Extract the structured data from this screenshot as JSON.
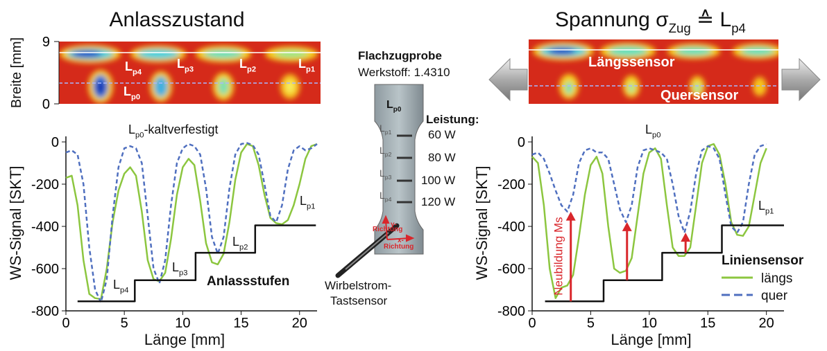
{
  "chart_data": [
    {
      "type": "line",
      "xlim": [
        0,
        21.5
      ],
      "ylim": [
        -800,
        0
      ],
      "xticks": [
        0,
        5,
        10,
        15,
        20
      ],
      "yticks": [
        -800,
        -600,
        -400,
        -200,
        0
      ],
      "xlabel": "Länge [mm]",
      "ylabel": "WS-Signal [SKT]",
      "series": [
        {
          "color": "#8cc63f",
          "dash": false,
          "x": [
            0,
            0.5,
            1,
            1.5,
            2,
            2.5,
            3,
            3.5,
            4,
            4.5,
            5,
            5.5,
            6,
            6.5,
            7,
            7.5,
            8,
            8.5,
            9,
            9.5,
            10,
            10.5,
            11,
            11.5,
            12,
            12.5,
            13,
            13.5,
            14,
            14.5,
            15,
            15.5,
            16,
            16.5,
            17,
            17.5,
            18,
            18.5,
            19,
            19.5,
            20,
            20.5,
            21,
            21.5
          ],
          "values": [
            -170,
            -160,
            -300,
            -560,
            -720,
            -740,
            -745,
            -600,
            -380,
            -230,
            -150,
            -120,
            -160,
            -330,
            -560,
            -650,
            -660,
            -620,
            -460,
            -250,
            -120,
            -80,
            -110,
            -280,
            -480,
            -570,
            -580,
            -530,
            -380,
            -180,
            -50,
            -10,
            -20,
            -110,
            -250,
            -360,
            -385,
            -390,
            -370,
            -300,
            -200,
            -80,
            -20,
            -10
          ]
        },
        {
          "color": "#4f6fbf",
          "dash": true,
          "x": [
            0,
            0.5,
            1,
            1.5,
            2,
            2.5,
            3,
            3.5,
            4,
            4.5,
            5,
            5.5,
            6,
            6.5,
            7,
            7.5,
            8,
            8.5,
            9,
            9.5,
            10,
            10.5,
            11,
            11.5,
            12,
            12.5,
            13,
            13.5,
            14,
            14.5,
            15,
            15.5,
            16,
            16.5,
            17,
            17.5,
            18,
            18.5,
            19,
            19.5,
            20,
            20.5,
            21,
            21.5
          ],
          "values": [
            -50,
            -40,
            -60,
            -200,
            -500,
            -700,
            -760,
            -650,
            -350,
            -120,
            -30,
            -20,
            -30,
            -100,
            -350,
            -600,
            -670,
            -560,
            -300,
            -100,
            -30,
            -10,
            -20,
            -60,
            -220,
            -450,
            -530,
            -450,
            -220,
            -60,
            -10,
            -5,
            -15,
            -60,
            -200,
            -350,
            -380,
            -300,
            -130,
            -40,
            -20,
            -40,
            -30,
            -10
          ]
        },
        {
          "color": "#111111",
          "dash": false,
          "x": [
            1,
            5.9,
            5.9,
            11.1,
            11.1,
            16.2,
            16.2,
            21.4
          ],
          "values": [
            -755,
            -755,
            -655,
            -655,
            -525,
            -525,
            -395,
            -395
          ]
        }
      ],
      "annotations": [
        {
          "text": "L",
          "sub": "p0",
          "tail": "-kaltverfestigt"
        },
        {
          "text": "L",
          "sub": "p1"
        },
        {
          "text": "L",
          "sub": "p2"
        },
        {
          "text": "L",
          "sub": "p3"
        },
        {
          "text": "L",
          "sub": "p4"
        },
        "Anlassstufen"
      ]
    },
    {
      "type": "line",
      "xlim": [
        0,
        21.5
      ],
      "ylim": [
        -800,
        0
      ],
      "xticks": [
        0,
        5,
        10,
        15,
        20
      ],
      "yticks": [
        -800,
        -600,
        -400,
        -200,
        0
      ],
      "xlabel": "Länge [mm]",
      "ylabel": "WS-Signal [SKT]",
      "legend_title": "Liniensensor",
      "series": [
        {
          "name": "längs",
          "color": "#8cc63f",
          "dash": false,
          "x": [
            0,
            0.5,
            1,
            1.5,
            2,
            2.5,
            3,
            3.5,
            4,
            4.5,
            5,
            5.5,
            6,
            6.5,
            7,
            7.5,
            8,
            8.5,
            9,
            9.5,
            10,
            10.5,
            11,
            11.5,
            12,
            12.5,
            13,
            13.5,
            14,
            14.5,
            15,
            15.5,
            16,
            16.5,
            17,
            17.5,
            18,
            18.5,
            19,
            19.5,
            20
          ],
          "values": [
            -70,
            -100,
            -300,
            -600,
            -740,
            -690,
            -680,
            -630,
            -450,
            -250,
            -110,
            -70,
            -150,
            -400,
            -600,
            -620,
            -610,
            -550,
            -350,
            -150,
            -50,
            -30,
            -80,
            -300,
            -500,
            -540,
            -540,
            -500,
            -300,
            -100,
            -20,
            -10,
            -60,
            -200,
            -380,
            -440,
            -445,
            -400,
            -250,
            -100,
            -30
          ]
        },
        {
          "name": "quer",
          "color": "#4f6fbf",
          "dash": true,
          "x": [
            0,
            0.5,
            1,
            1.5,
            2,
            2.5,
            3,
            3.5,
            4,
            4.5,
            5,
            5.5,
            6,
            6.5,
            7,
            7.5,
            8,
            8.5,
            9,
            9.5,
            10,
            10.5,
            11,
            11.5,
            12,
            12.5,
            13,
            13.5,
            14,
            14.5,
            15,
            15.5,
            16,
            16.5,
            17,
            17.5,
            18,
            18.5,
            19,
            19.5,
            20
          ],
          "values": [
            -60,
            -50,
            -80,
            -150,
            -230,
            -300,
            -330,
            -250,
            -100,
            -40,
            -30,
            -50,
            -50,
            -80,
            -200,
            -320,
            -380,
            -300,
            -120,
            -40,
            -30,
            -40,
            -50,
            -80,
            -200,
            -350,
            -430,
            -330,
            -150,
            -40,
            -20,
            -30,
            -80,
            -250,
            -400,
            -430,
            -380,
            -200,
            -60,
            -20,
            -10
          ]
        },
        {
          "color": "#111111",
          "dash": false,
          "x": [
            1.1,
            6.1,
            6.1,
            11.1,
            11.1,
            16.2,
            16.2,
            21.5
          ],
          "values": [
            -755,
            -755,
            -655,
            -655,
            -525,
            -525,
            -395,
            -395
          ]
        }
      ],
      "arrows": [
        {
          "x": 3.3,
          "from": -755,
          "to": -330
        },
        {
          "x": 8.1,
          "from": -655,
          "to": -380
        },
        {
          "x": 13.1,
          "from": -525,
          "to": -430
        }
      ],
      "arrow_label": "Neubildung Ms",
      "arrow_color": "#d9262b",
      "annotations": [
        {
          "text": "L",
          "sub": "p0"
        },
        {
          "text": "L",
          "sub": "p1"
        }
      ]
    }
  ],
  "figure": {
    "titles": [
      "Anlasszustand",
      {
        "text": "Spannung σ",
        "sub": "Zug",
        "tail": " ≙ L",
        "sub2": "p4"
      }
    ],
    "heatmaps": [
      {
        "ylabel": "Breite [mm]",
        "ylim": [
          0,
          9
        ],
        "yticks": [
          0,
          9
        ],
        "labels": [
          {
            "text": "L",
            "sub": "p4"
          },
          {
            "text": "L",
            "sub": "p3"
          },
          {
            "text": "L",
            "sub": "p2"
          },
          {
            "text": "L",
            "sub": "p1"
          },
          {
            "text": "L",
            "sub": "p0"
          }
        ]
      },
      {
        "labels": [
          "Längssensor",
          "Quersensor"
        ]
      }
    ],
    "specimen": {
      "title": "Flachzugprobe",
      "material": "Werkstoff: 1.4310",
      "center": {
        "text": "L",
        "sub": "p0"
      },
      "zones": [
        {
          "text": "L",
          "sub": "p1"
        },
        {
          "text": "L",
          "sub": "p2"
        },
        {
          "text": "L",
          "sub": "p3"
        },
        {
          "text": "L",
          "sub": "p4"
        }
      ],
      "power_title": "Leistung:",
      "powers": [
        "60 W",
        "80 W",
        "100 W",
        "120 W"
      ],
      "y_dir": [
        "y-",
        "Richtung"
      ],
      "x_dir": [
        "x-",
        "Richtung"
      ],
      "sensor": [
        "Wirbelstrom-",
        "Tastsensor"
      ]
    }
  }
}
